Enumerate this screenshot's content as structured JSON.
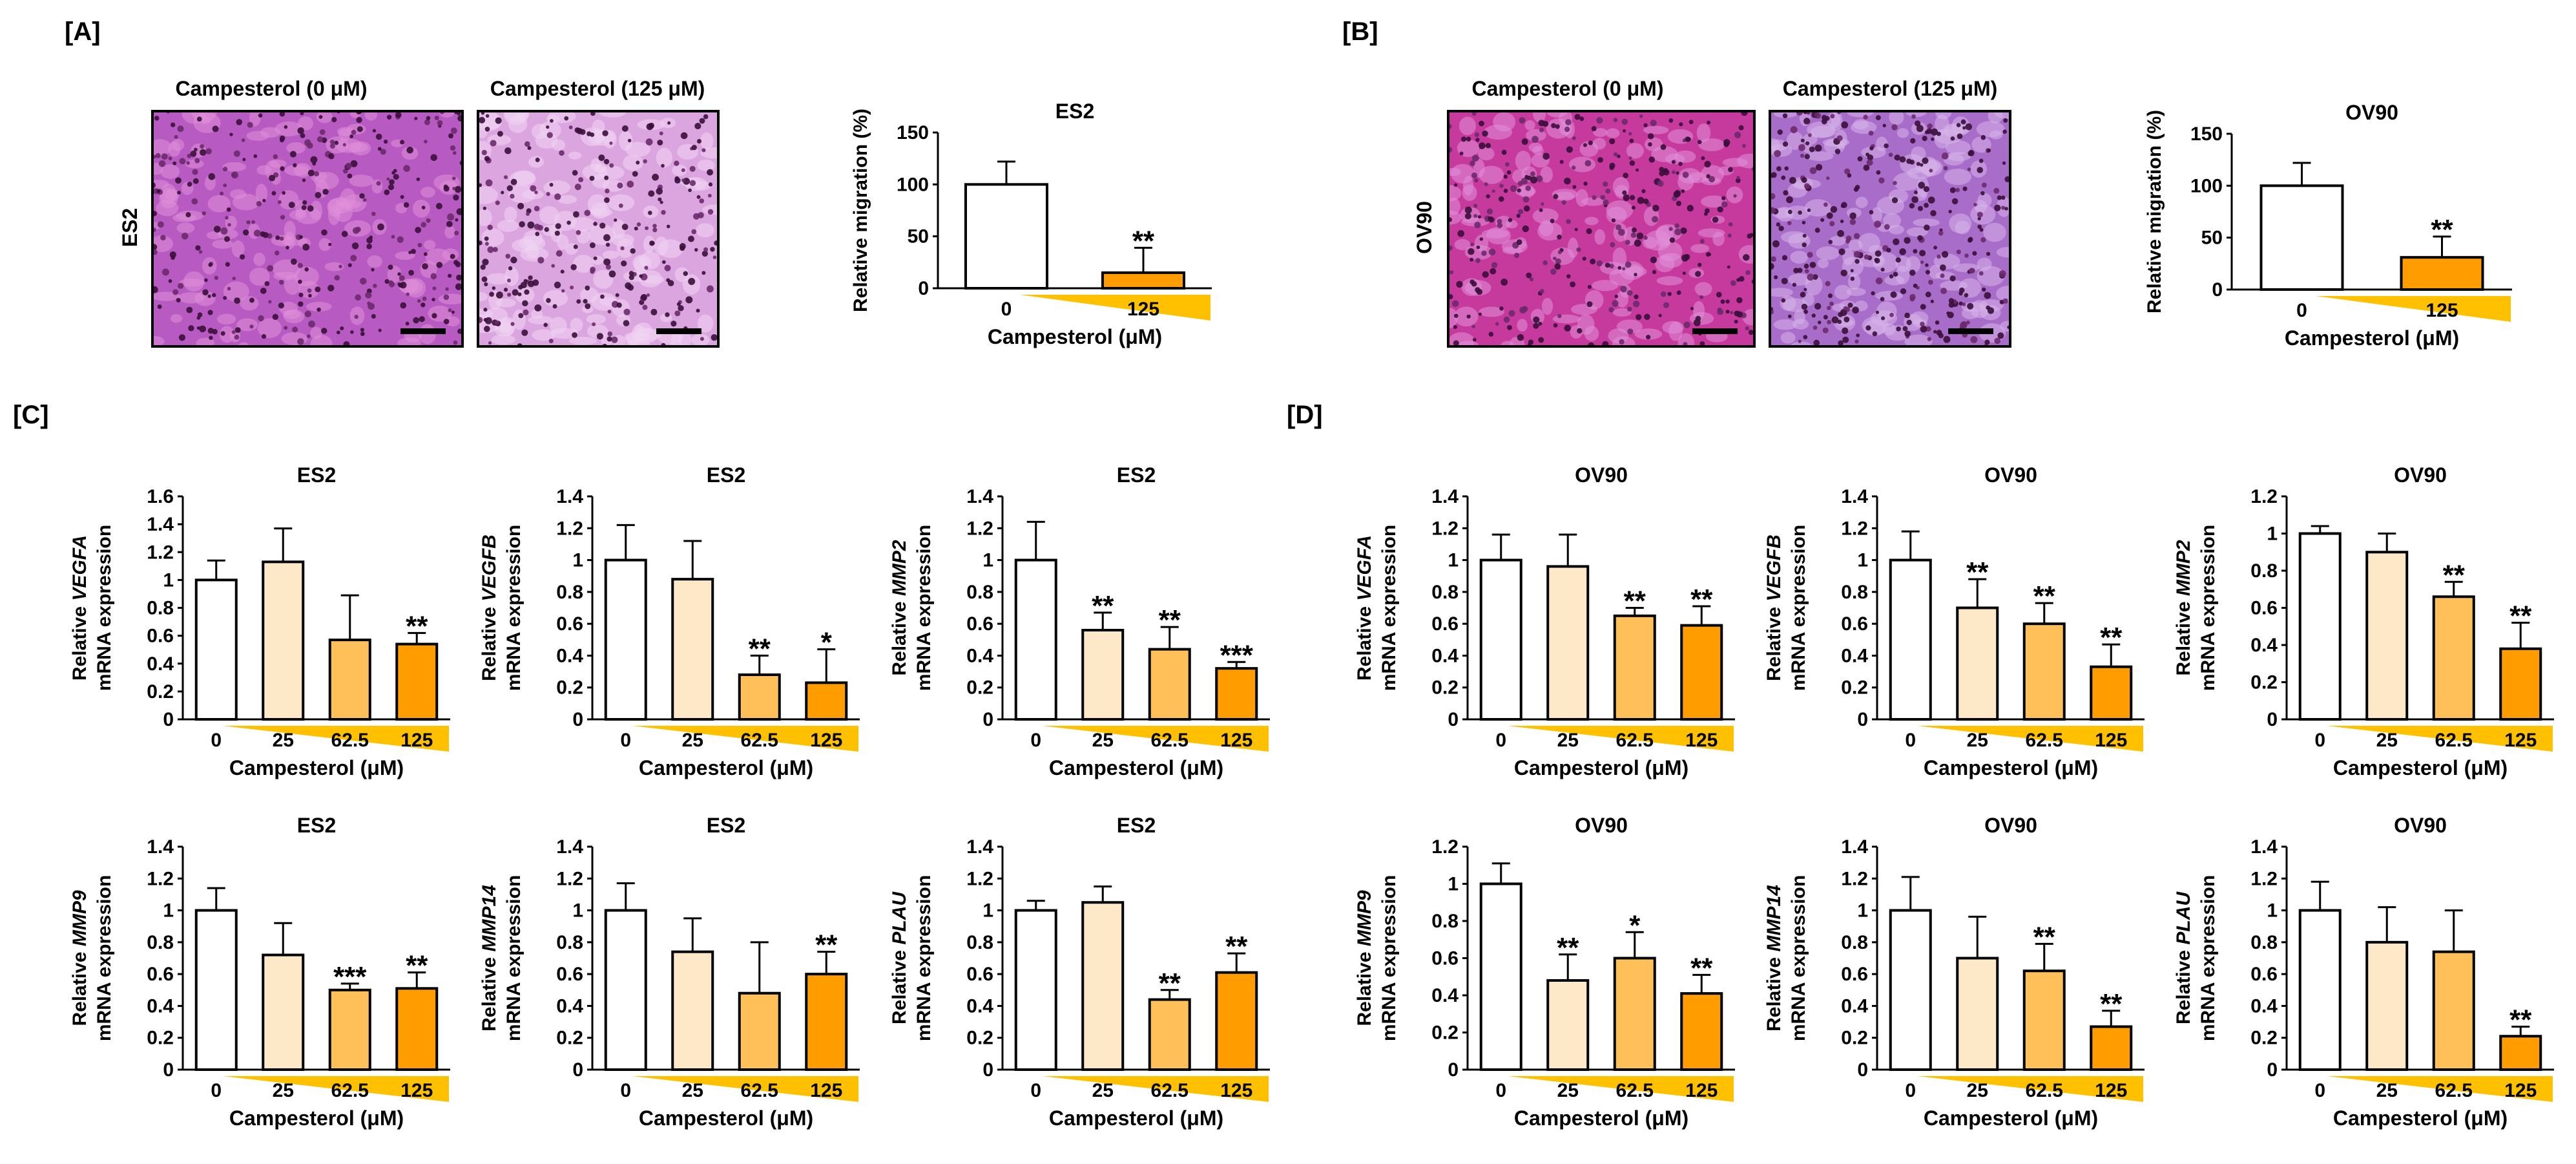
{
  "figure": {
    "panel_labels": [
      "[A]",
      "[B]",
      "[C]",
      "[D]"
    ],
    "colors": {
      "bar_0": "#ffffff",
      "bar_25": "#fde9c8",
      "bar_62_5": "#ffc05a",
      "bar_125": "#ff9c00",
      "wedge": "#ffc000",
      "stroke": "#000000",
      "stain_es2_0": "#b75ac2",
      "stain_es2_125": "#dba6e0",
      "stain_ov90_0": "#c63a9e",
      "stain_ov90_125": "#a86cc9"
    }
  },
  "micrographs": [
    {
      "title": "Campesterol (0 μM)",
      "row_label": "ES2",
      "stain": "stain_es2_0"
    },
    {
      "title": "Campesterol (125 μM)",
      "row_label": "",
      "stain": "stain_es2_125"
    },
    {
      "title": "Campesterol (0 μM)",
      "row_label": "OV90",
      "stain": "stain_ov90_0"
    },
    {
      "title": "Campesterol (125 μM)",
      "row_label": "",
      "stain": "stain_ov90_125"
    }
  ],
  "chart_data": [
    {
      "id": "A",
      "type": "bar",
      "title": "ES2",
      "ylabel": "Relative migration (%)",
      "ylabel_italic": "",
      "ylabel2": "",
      "xlabel": "Campesterol (μM)",
      "categories": [
        "0",
        "125"
      ],
      "values": [
        100,
        15
      ],
      "errors": [
        22,
        24
      ],
      "sig": [
        "",
        "**"
      ],
      "colors": [
        "bar_0",
        "bar_125"
      ],
      "ylim": [
        0,
        150
      ],
      "ticks": [
        "0",
        "50",
        "100",
        "150"
      ]
    },
    {
      "id": "B",
      "type": "bar",
      "title": "OV90",
      "ylabel": "Relative migration (%)",
      "ylabel_italic": "",
      "ylabel2": "",
      "xlabel": "Campesterol (μM)",
      "categories": [
        "0",
        "125"
      ],
      "values": [
        100,
        31
      ],
      "errors": [
        22,
        20
      ],
      "sig": [
        "",
        "**"
      ],
      "colors": [
        "bar_0",
        "bar_125"
      ],
      "ylim": [
        0,
        150
      ],
      "ticks": [
        "0",
        "50",
        "100",
        "150"
      ]
    },
    {
      "id": "C1",
      "type": "bar",
      "title": "ES2",
      "ylabel": "Relative ",
      "ylabel_italic": "VEGFA",
      "ylabel2": "mRNA expression",
      "xlabel": "Campesterol (μM)",
      "categories": [
        "0",
        "25",
        "62.5",
        "125"
      ],
      "values": [
        1.0,
        1.13,
        0.57,
        0.54
      ],
      "errors": [
        0.14,
        0.24,
        0.32,
        0.08
      ],
      "sig": [
        "",
        "",
        "",
        "**"
      ],
      "colors": [
        "bar_0",
        "bar_25",
        "bar_62_5",
        "bar_125"
      ],
      "ylim": [
        0,
        1.6
      ],
      "ticks": [
        "0",
        "0.2",
        "0.4",
        "0.6",
        "0.8",
        "1",
        "1.2",
        "1.4",
        "1.6"
      ]
    },
    {
      "id": "C2",
      "type": "bar",
      "title": "ES2",
      "ylabel": "Relative ",
      "ylabel_italic": "VEGFB",
      "ylabel2": "mRNA expression",
      "xlabel": "Campesterol (μM)",
      "categories": [
        "0",
        "25",
        "62.5",
        "125"
      ],
      "values": [
        1.0,
        0.88,
        0.28,
        0.23
      ],
      "errors": [
        0.22,
        0.24,
        0.12,
        0.21
      ],
      "sig": [
        "",
        "",
        "**",
        "*"
      ],
      "colors": [
        "bar_0",
        "bar_25",
        "bar_62_5",
        "bar_125"
      ],
      "ylim": [
        0,
        1.4
      ],
      "ticks": [
        "0",
        "0.2",
        "0.4",
        "0.6",
        "0.8",
        "1",
        "1.2",
        "1.4"
      ]
    },
    {
      "id": "C3",
      "type": "bar",
      "title": "ES2",
      "ylabel": "Relative ",
      "ylabel_italic": "MMP2",
      "ylabel2": "mRNA expression",
      "xlabel": "Campesterol (μM)",
      "categories": [
        "0",
        "25",
        "62.5",
        "125"
      ],
      "values": [
        1.0,
        0.56,
        0.44,
        0.32
      ],
      "errors": [
        0.24,
        0.11,
        0.14,
        0.04
      ],
      "sig": [
        "",
        "**",
        "**",
        "***"
      ],
      "colors": [
        "bar_0",
        "bar_25",
        "bar_62_5",
        "bar_125"
      ],
      "ylim": [
        0,
        1.4
      ],
      "ticks": [
        "0",
        "0.2",
        "0.4",
        "0.6",
        "0.8",
        "1",
        "1.2",
        "1.4"
      ]
    },
    {
      "id": "C4",
      "type": "bar",
      "title": "ES2",
      "ylabel": "Relative ",
      "ylabel_italic": "MMP9",
      "ylabel2": "mRNA expression",
      "xlabel": "Campesterol (μM)",
      "categories": [
        "0",
        "25",
        "62.5",
        "125"
      ],
      "values": [
        1.0,
        0.72,
        0.5,
        0.51
      ],
      "errors": [
        0.14,
        0.2,
        0.04,
        0.1
      ],
      "sig": [
        "",
        "",
        "***",
        "**"
      ],
      "colors": [
        "bar_0",
        "bar_25",
        "bar_62_5",
        "bar_125"
      ],
      "ylim": [
        0,
        1.4
      ],
      "ticks": [
        "0",
        "0.2",
        "0.4",
        "0.6",
        "0.8",
        "1",
        "1.2",
        "1.4"
      ]
    },
    {
      "id": "C5",
      "type": "bar",
      "title": "ES2",
      "ylabel": "Relative ",
      "ylabel_italic": "MMP14",
      "ylabel2": "mRNA expression",
      "xlabel": "Campesterol (μM)",
      "categories": [
        "0",
        "25",
        "62.5",
        "125"
      ],
      "values": [
        1.0,
        0.74,
        0.48,
        0.6
      ],
      "errors": [
        0.17,
        0.21,
        0.32,
        0.14
      ],
      "sig": [
        "",
        "",
        "",
        "**"
      ],
      "colors": [
        "bar_0",
        "bar_25",
        "bar_62_5",
        "bar_125"
      ],
      "ylim": [
        0,
        1.4
      ],
      "ticks": [
        "0",
        "0.2",
        "0.4",
        "0.6",
        "0.8",
        "1",
        "1.2",
        "1.4"
      ]
    },
    {
      "id": "C6",
      "type": "bar",
      "title": "ES2",
      "ylabel": "Relative ",
      "ylabel_italic": "PLAU",
      "ylabel2": "mRNA expression",
      "xlabel": "Campesterol (μM)",
      "categories": [
        "0",
        "25",
        "62.5",
        "125"
      ],
      "values": [
        1.0,
        1.05,
        0.44,
        0.61
      ],
      "errors": [
        0.06,
        0.1,
        0.06,
        0.12
      ],
      "sig": [
        "",
        "",
        "**",
        "**"
      ],
      "colors": [
        "bar_0",
        "bar_25",
        "bar_62_5",
        "bar_125"
      ],
      "ylim": [
        0,
        1.4
      ],
      "ticks": [
        "0",
        "0.2",
        "0.4",
        "0.6",
        "0.8",
        "1",
        "1.2",
        "1.4"
      ]
    },
    {
      "id": "D1",
      "type": "bar",
      "title": "OV90",
      "ylabel": "Relative ",
      "ylabel_italic": "VEGFA",
      "ylabel2": "mRNA expression",
      "xlabel": "Campesterol (μM)",
      "categories": [
        "0",
        "25",
        "62.5",
        "125"
      ],
      "values": [
        1.0,
        0.96,
        0.65,
        0.59
      ],
      "errors": [
        0.16,
        0.2,
        0.05,
        0.12
      ],
      "sig": [
        "",
        "",
        "**",
        "**"
      ],
      "colors": [
        "bar_0",
        "bar_25",
        "bar_62_5",
        "bar_125"
      ],
      "ylim": [
        0,
        1.4
      ],
      "ticks": [
        "0",
        "0.2",
        "0.4",
        "0.6",
        "0.8",
        "1",
        "1.2",
        "1.4"
      ]
    },
    {
      "id": "D2",
      "type": "bar",
      "title": "OV90",
      "ylabel": "Relative ",
      "ylabel_italic": "VEGFB",
      "ylabel2": "mRNA expression",
      "xlabel": "Campesterol (μM)",
      "categories": [
        "0",
        "25",
        "62.5",
        "125"
      ],
      "values": [
        1.0,
        0.7,
        0.6,
        0.33
      ],
      "errors": [
        0.18,
        0.18,
        0.13,
        0.14
      ],
      "sig": [
        "",
        "**",
        "**",
        "**"
      ],
      "colors": [
        "bar_0",
        "bar_25",
        "bar_62_5",
        "bar_125"
      ],
      "ylim": [
        0,
        1.4
      ],
      "ticks": [
        "0",
        "0.2",
        "0.4",
        "0.6",
        "0.8",
        "1",
        "1.2",
        "1.4"
      ]
    },
    {
      "id": "D3",
      "type": "bar",
      "title": "OV90",
      "ylabel": "Relative ",
      "ylabel_italic": "MMP2",
      "ylabel2": "mRNA expression",
      "xlabel": "Campesterol (μM)",
      "categories": [
        "0",
        "25",
        "62.5",
        "125"
      ],
      "values": [
        1.0,
        0.9,
        0.66,
        0.38
      ],
      "errors": [
        0.04,
        0.1,
        0.08,
        0.14
      ],
      "sig": [
        "",
        "",
        "**",
        "**"
      ],
      "colors": [
        "bar_0",
        "bar_25",
        "bar_62_5",
        "bar_125"
      ],
      "ylim": [
        0,
        1.2
      ],
      "ticks": [
        "0",
        "0.2",
        "0.4",
        "0.6",
        "0.8",
        "1",
        "1.2"
      ]
    },
    {
      "id": "D4",
      "type": "bar",
      "title": "OV90",
      "ylabel": "Relative ",
      "ylabel_italic": "MMP9",
      "ylabel2": "mRNA expression",
      "xlabel": "Campesterol (μM)",
      "categories": [
        "0",
        "25",
        "62.5",
        "125"
      ],
      "values": [
        1.0,
        0.48,
        0.6,
        0.41
      ],
      "errors": [
        0.11,
        0.14,
        0.14,
        0.1
      ],
      "sig": [
        "",
        "**",
        "*",
        "**"
      ],
      "colors": [
        "bar_0",
        "bar_25",
        "bar_62_5",
        "bar_125"
      ],
      "ylim": [
        0,
        1.2
      ],
      "ticks": [
        "0",
        "0.2",
        "0.4",
        "0.6",
        "0.8",
        "1",
        "1.2"
      ]
    },
    {
      "id": "D5",
      "type": "bar",
      "title": "OV90",
      "ylabel": "Relative ",
      "ylabel_italic": "MMP14",
      "ylabel2": "mRNA expression",
      "xlabel": "Campesterol (μM)",
      "categories": [
        "0",
        "25",
        "62.5",
        "125"
      ],
      "values": [
        1.0,
        0.7,
        0.62,
        0.27
      ],
      "errors": [
        0.21,
        0.26,
        0.17,
        0.1
      ],
      "sig": [
        "",
        "",
        "**",
        "**"
      ],
      "colors": [
        "bar_0",
        "bar_25",
        "bar_62_5",
        "bar_125"
      ],
      "ylim": [
        0,
        1.4
      ],
      "ticks": [
        "0",
        "0.2",
        "0.4",
        "0.6",
        "0.8",
        "1",
        "1.2",
        "1.4"
      ]
    },
    {
      "id": "D6",
      "type": "bar",
      "title": "OV90",
      "ylabel": "Relative ",
      "ylabel_italic": "PLAU",
      "ylabel2": "mRNA expression",
      "xlabel": "Campesterol (μM)",
      "categories": [
        "0",
        "25",
        "62.5",
        "125"
      ],
      "values": [
        1.0,
        0.8,
        0.74,
        0.21
      ],
      "errors": [
        0.18,
        0.22,
        0.26,
        0.06
      ],
      "sig": [
        "",
        "",
        "",
        "**"
      ],
      "colors": [
        "bar_0",
        "bar_25",
        "bar_62_5",
        "bar_125"
      ],
      "ylim": [
        0,
        1.4
      ],
      "ticks": [
        "0",
        "0.2",
        "0.4",
        "0.6",
        "0.8",
        "1",
        "1.2",
        "1.4"
      ]
    }
  ]
}
